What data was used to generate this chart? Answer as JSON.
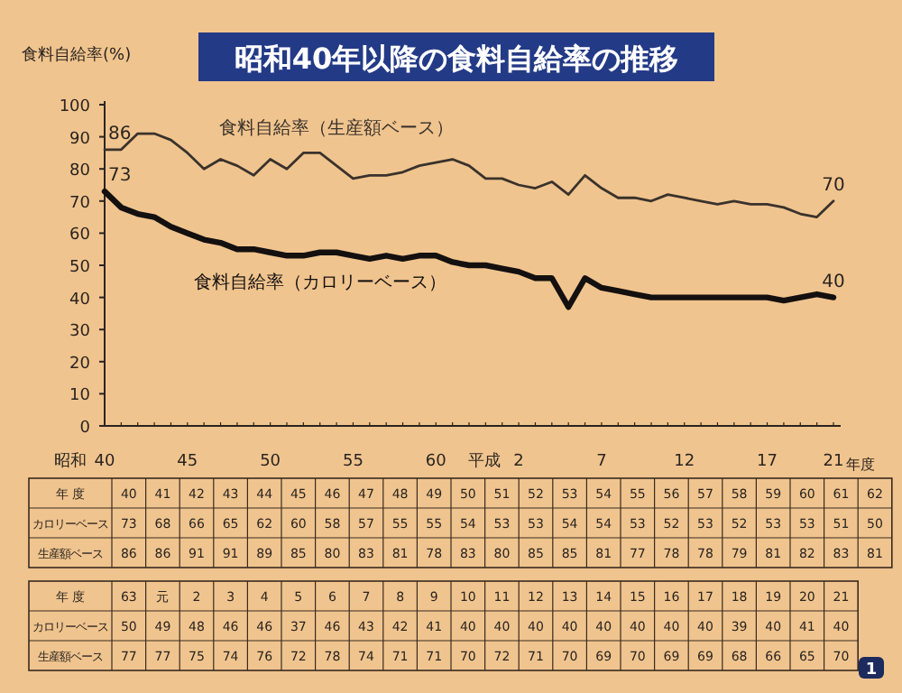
{
  "chart_data": [
    {
      "type": "line",
      "title": "昭和40年以降の食料自給率の推移",
      "ylabel": "食料自給率(%)",
      "xlabel": "年度",
      "categories": [
        "40",
        null,
        null,
        null,
        null,
        "45",
        null,
        null,
        null,
        null,
        "50",
        null,
        null,
        null,
        null,
        "55",
        null,
        null,
        null,
        null,
        "60",
        null,
        null,
        null,
        null,
        "2",
        null,
        null,
        null,
        null,
        "7",
        null,
        null,
        null,
        null,
        "12",
        null,
        null,
        null,
        null,
        "17",
        null,
        null,
        null,
        "21"
      ],
      "series": [
        {
          "name": "食料自給率（生産額ベース）",
          "color": "#3a322c",
          "values": [
            86,
            86,
            91,
            91,
            89,
            85,
            80,
            83,
            81,
            78,
            83,
            80,
            85,
            85,
            81,
            77,
            78,
            78,
            79,
            81,
            82,
            83,
            81,
            77,
            77,
            75,
            74,
            76,
            72,
            78,
            74,
            71,
            71,
            70,
            72,
            71,
            70,
            69,
            70,
            69,
            69,
            68,
            66,
            65,
            70
          ]
        },
        {
          "name": "食料自給率（カロリーベース）",
          "color": "#141010",
          "values": [
            73,
            68,
            66,
            65,
            62,
            60,
            58,
            57,
            55,
            55,
            54,
            53,
            53,
            54,
            54,
            53,
            52,
            53,
            52,
            53,
            53,
            51,
            50,
            50,
            49,
            48,
            46,
            46,
            37,
            46,
            43,
            42,
            41,
            40,
            40,
            40,
            40,
            40,
            40,
            40,
            40,
            39,
            40,
            41,
            40
          ]
        }
      ],
      "ylim": [
        0,
        100
      ],
      "yticks": [
        0,
        10,
        20,
        30,
        40,
        50,
        60,
        70,
        80,
        90,
        100
      ],
      "grid": false,
      "legend": false,
      "annotations": [
        {
          "text": "86",
          "x": "40",
          "y": 86
        },
        {
          "text": "73",
          "x": "40",
          "y": 73
        },
        {
          "text": "70",
          "x": "21",
          "y": 70
        },
        {
          "text": "40",
          "x": "21",
          "y": 40
        },
        "昭和",
        "平成"
      ]
    },
    {
      "type": "heatmap",
      "xlabel": "年 度",
      "categories": [
        "40",
        "41",
        "42",
        "43",
        "44",
        "45",
        "46",
        "47",
        "48",
        "49",
        "50",
        "51",
        "52",
        "53",
        "54",
        "55",
        "56",
        "57",
        "58",
        "59",
        "60",
        "61",
        "62"
      ],
      "y_categories": [
        "カロリーベース",
        "生産額ベース"
      ],
      "cells": [
        [
          73,
          68,
          66,
          65,
          62,
          60,
          58,
          57,
          55,
          55,
          54,
          53,
          53,
          54,
          54,
          53,
          52,
          53,
          52,
          53,
          53,
          51,
          50
        ],
        [
          86,
          86,
          91,
          91,
          89,
          85,
          80,
          83,
          81,
          78,
          83,
          80,
          85,
          85,
          81,
          77,
          78,
          78,
          79,
          81,
          82,
          83,
          81
        ]
      ],
      "data_labels": true
    },
    {
      "type": "heatmap",
      "xlabel": "年 度",
      "categories": [
        "63",
        "元",
        "2",
        "3",
        "4",
        "5",
        "6",
        "7",
        "8",
        "9",
        "10",
        "11",
        "12",
        "13",
        "14",
        "15",
        "16",
        "17",
        "18",
        "19",
        "20",
        "21"
      ],
      "y_categories": [
        "カロリーベース",
        "生産額ベース"
      ],
      "cells": [
        [
          50,
          49,
          48,
          46,
          46,
          37,
          46,
          43,
          42,
          41,
          40,
          40,
          40,
          40,
          40,
          40,
          40,
          40,
          39,
          40,
          41,
          40
        ],
        [
          77,
          77,
          75,
          74,
          76,
          72,
          78,
          74,
          71,
          71,
          70,
          72,
          71,
          70,
          69,
          70,
          69,
          69,
          68,
          66,
          65,
          70
        ]
      ],
      "data_labels": true,
      "annotations": [
        "1"
      ]
    }
  ]
}
